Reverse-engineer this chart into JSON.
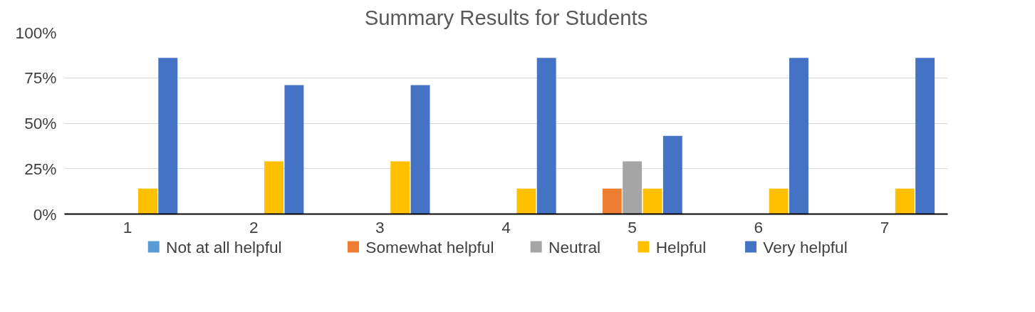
{
  "chart_data": {
    "type": "bar",
    "title": "Summary Results for Students",
    "categories": [
      "1",
      "2",
      "3",
      "4",
      "5",
      "6",
      "7"
    ],
    "series": [
      {
        "name": "Not at all helpful",
        "color": "#5b9bd5",
        "values": [
          0,
          0,
          0,
          0,
          0,
          0,
          0
        ]
      },
      {
        "name": "Somewhat helpful",
        "color": "#ed7d31",
        "values": [
          0,
          0,
          0,
          0,
          14,
          0,
          0
        ]
      },
      {
        "name": "Neutral",
        "color": "#a5a5a5",
        "values": [
          0,
          0,
          0,
          0,
          29,
          0,
          0
        ]
      },
      {
        "name": "Helpful",
        "color": "#ffc000",
        "values": [
          14,
          29,
          29,
          14,
          14,
          14,
          14
        ]
      },
      {
        "name": "Very helpful",
        "color": "#4472c4",
        "values": [
          86,
          71,
          71,
          86,
          43,
          86,
          86
        ]
      }
    ],
    "ylim": [
      0,
      100
    ],
    "yticks": [
      {
        "value": 0,
        "label": "0%"
      },
      {
        "value": 25,
        "label": "25%"
      },
      {
        "value": 50,
        "label": "50%"
      },
      {
        "value": 75,
        "label": "75%"
      },
      {
        "value": 100,
        "label": "100%"
      }
    ],
    "grid": "y",
    "legend": "bottom"
  }
}
